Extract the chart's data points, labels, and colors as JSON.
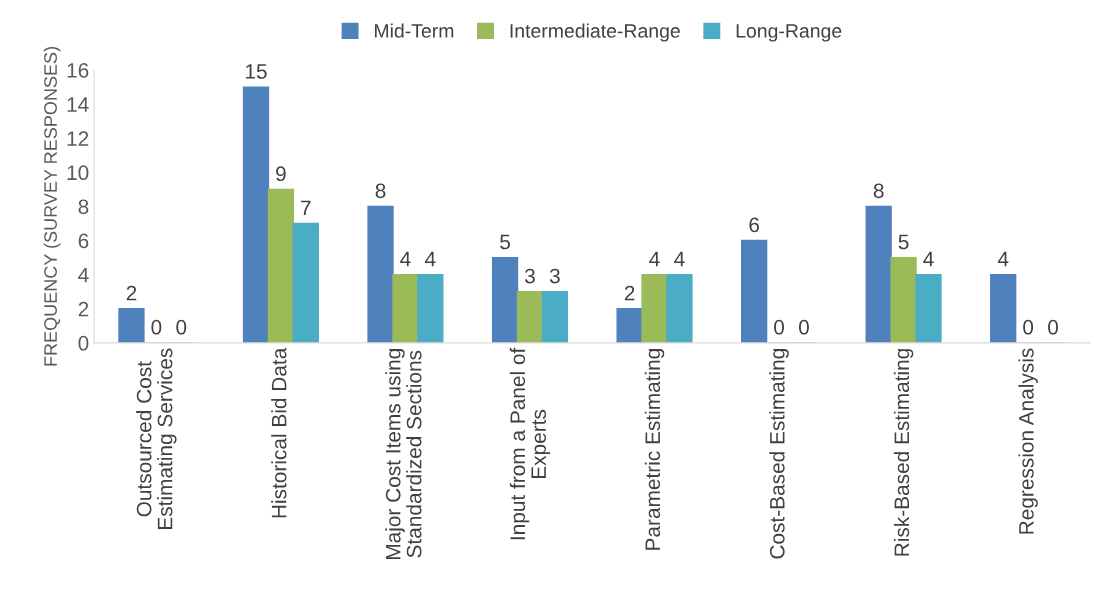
{
  "chart_data": {
    "type": "bar",
    "ylabel": "FREQUENCY (SURVEY RESPONSES)",
    "categories": [
      "Outsourced Cost\nEstimating Services",
      "Historical Bid Data",
      "Major Cost Items using\nStandardized Sections",
      "Input from a Panel of\nExperts",
      "Parametric Estimating",
      "Cost-Based Estimating",
      "Risk-Based Estimating",
      "Regression Analysis"
    ],
    "series": [
      {
        "name": "Mid-Term",
        "color": "#4f81bd",
        "values": [
          2,
          15,
          8,
          5,
          2,
          6,
          8,
          4
        ]
      },
      {
        "name": "Intermediate-Range",
        "color": "#9bbb59",
        "values": [
          0,
          9,
          4,
          3,
          4,
          0,
          5,
          0
        ]
      },
      {
        "name": "Long-Range",
        "color": "#4bacc6",
        "values": [
          0,
          7,
          4,
          3,
          4,
          0,
          4,
          0
        ]
      }
    ],
    "ylim": [
      0,
      16
    ],
    "yticks": [
      0,
      2,
      4,
      6,
      8,
      10,
      12,
      14,
      16
    ],
    "data_labels": true,
    "legend": "top",
    "grid": false
  }
}
